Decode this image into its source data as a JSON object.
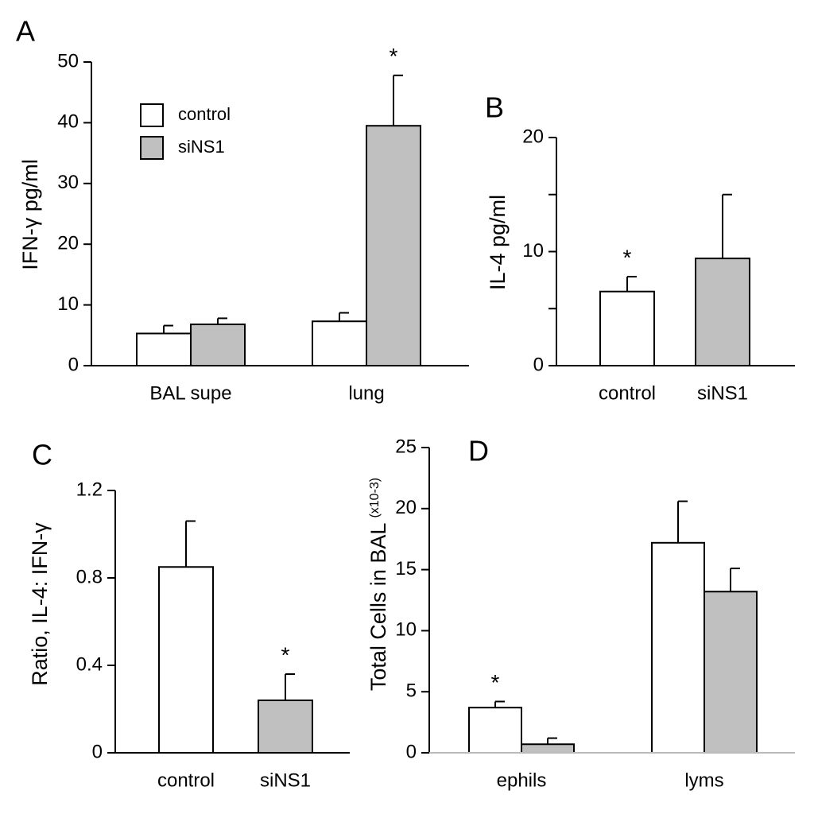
{
  "chart_data": [
    {
      "type": "bar",
      "panel": "A",
      "ylabel": "IFN-γ pg/ml",
      "categories": [
        "BAL supe",
        "lung"
      ],
      "series": [
        {
          "name": "control",
          "color": "#ffffff",
          "values": [
            5.3,
            7.3
          ],
          "errors": [
            1.3,
            1.4
          ]
        },
        {
          "name": "siNS1",
          "color": "#c0c0c0",
          "values": [
            6.8,
            39.5
          ],
          "errors": [
            1.0,
            8.3
          ]
        }
      ],
      "ylim": [
        0,
        50
      ],
      "yticks": [
        0,
        10,
        20,
        30,
        40,
        50
      ],
      "annotations": [
        {
          "text": "*",
          "category": "lung",
          "series": "siNS1"
        }
      ]
    },
    {
      "type": "bar",
      "panel": "B",
      "ylabel": "IL-4 pg/ml",
      "categories": [
        "control",
        "siNS1"
      ],
      "values": [
        6.5,
        9.4
      ],
      "errors": [
        1.3,
        5.6
      ],
      "colors": [
        "#ffffff",
        "#c0c0c0"
      ],
      "ylim": [
        0,
        20
      ],
      "yticks": [
        0,
        10,
        20
      ],
      "yminorticks": [
        5,
        15
      ],
      "annotations": [
        {
          "text": "*",
          "category": "control"
        }
      ]
    },
    {
      "type": "bar",
      "panel": "C",
      "ylabel": "Ratio, IL-4: IFN-γ",
      "categories": [
        "control",
        "siNS1"
      ],
      "values": [
        0.85,
        0.24
      ],
      "errors": [
        0.21,
        0.12
      ],
      "colors": [
        "#ffffff",
        "#c0c0c0"
      ],
      "ylim": [
        0,
        1.2
      ],
      "yticks": [
        0,
        0.4,
        0.8,
        1.2
      ],
      "annotations": [
        {
          "text": "*",
          "category": "siNS1"
        }
      ]
    },
    {
      "type": "bar",
      "panel": "D",
      "ylabel": "Total Cells in BAL",
      "ylabel_note": "(x10-3)",
      "categories": [
        "ephils",
        "lyms"
      ],
      "series": [
        {
          "name": "control",
          "color": "#ffffff",
          "values": [
            3.7,
            17.2
          ],
          "errors": [
            0.5,
            3.4
          ]
        },
        {
          "name": "siNS1",
          "color": "#c0c0c0",
          "values": [
            0.7,
            13.2
          ],
          "errors": [
            0.5,
            1.9
          ]
        }
      ],
      "ylim": [
        0,
        25
      ],
      "yticks": [
        0,
        5,
        10,
        15,
        20,
        25
      ],
      "annotations": [
        {
          "text": "*",
          "category": "ephils",
          "series": "control"
        }
      ]
    }
  ]
}
